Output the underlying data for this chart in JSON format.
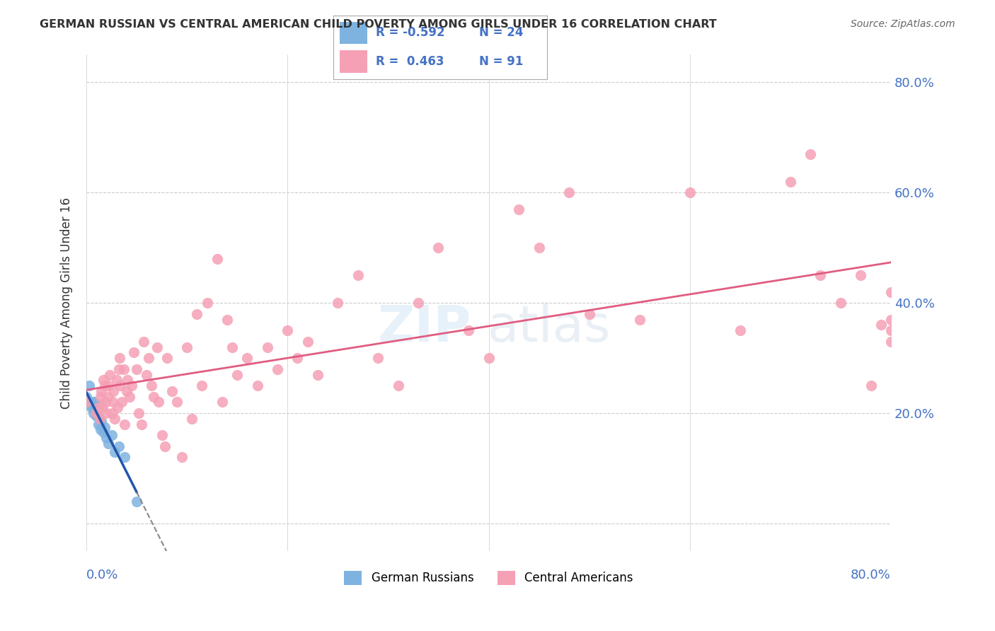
{
  "title": "GERMAN RUSSIAN VS CENTRAL AMERICAN CHILD POVERTY AMONG GIRLS UNDER 16 CORRELATION CHART",
  "source": "Source: ZipAtlas.com",
  "ylabel": "Child Poverty Among Girls Under 16",
  "xlim": [
    0.0,
    0.8
  ],
  "ylim": [
    -0.05,
    0.85
  ],
  "color_blue": "#7eb3e0",
  "color_pink": "#f5a0b5",
  "color_blue_text": "#4472c4",
  "german_russian_x": [
    0.0,
    0.003,
    0.005,
    0.005,
    0.006,
    0.007,
    0.008,
    0.01,
    0.01,
    0.011,
    0.012,
    0.013,
    0.013,
    0.014,
    0.015,
    0.017,
    0.018,
    0.02,
    0.022,
    0.025,
    0.028,
    0.032,
    0.038,
    0.05
  ],
  "german_russian_y": [
    0.23,
    0.25,
    0.215,
    0.21,
    0.22,
    0.2,
    0.22,
    0.21,
    0.195,
    0.205,
    0.18,
    0.215,
    0.19,
    0.17,
    0.185,
    0.165,
    0.175,
    0.155,
    0.145,
    0.16,
    0.13,
    0.14,
    0.12,
    0.04
  ],
  "central_american_x": [
    0.0,
    0.01,
    0.012,
    0.013,
    0.014,
    0.015,
    0.016,
    0.017,
    0.018,
    0.019,
    0.02,
    0.021,
    0.022,
    0.023,
    0.025,
    0.026,
    0.027,
    0.028,
    0.03,
    0.031,
    0.032,
    0.033,
    0.034,
    0.035,
    0.037,
    0.038,
    0.04,
    0.041,
    0.043,
    0.045,
    0.047,
    0.05,
    0.052,
    0.055,
    0.057,
    0.06,
    0.062,
    0.065,
    0.067,
    0.07,
    0.072,
    0.075,
    0.078,
    0.08,
    0.085,
    0.09,
    0.095,
    0.1,
    0.105,
    0.11,
    0.115,
    0.12,
    0.13,
    0.135,
    0.14,
    0.145,
    0.15,
    0.16,
    0.17,
    0.18,
    0.19,
    0.2,
    0.21,
    0.22,
    0.23,
    0.25,
    0.27,
    0.29,
    0.31,
    0.33,
    0.35,
    0.38,
    0.4,
    0.43,
    0.45,
    0.48,
    0.5,
    0.55,
    0.6,
    0.65,
    0.7,
    0.72,
    0.73,
    0.75,
    0.77,
    0.78,
    0.79,
    0.8,
    0.8,
    0.8,
    0.8
  ],
  "central_american_y": [
    0.22,
    0.2,
    0.21,
    0.19,
    0.23,
    0.24,
    0.21,
    0.26,
    0.25,
    0.22,
    0.2,
    0.23,
    0.25,
    0.27,
    0.2,
    0.22,
    0.24,
    0.19,
    0.26,
    0.21,
    0.28,
    0.3,
    0.25,
    0.22,
    0.28,
    0.18,
    0.24,
    0.26,
    0.23,
    0.25,
    0.31,
    0.28,
    0.2,
    0.18,
    0.33,
    0.27,
    0.3,
    0.25,
    0.23,
    0.32,
    0.22,
    0.16,
    0.14,
    0.3,
    0.24,
    0.22,
    0.12,
    0.32,
    0.19,
    0.38,
    0.25,
    0.4,
    0.48,
    0.22,
    0.37,
    0.32,
    0.27,
    0.3,
    0.25,
    0.32,
    0.28,
    0.35,
    0.3,
    0.33,
    0.27,
    0.4,
    0.45,
    0.3,
    0.25,
    0.4,
    0.5,
    0.35,
    0.3,
    0.57,
    0.5,
    0.6,
    0.38,
    0.37,
    0.6,
    0.35,
    0.62,
    0.67,
    0.45,
    0.4,
    0.45,
    0.25,
    0.36,
    0.42,
    0.37,
    0.33,
    0.35
  ]
}
